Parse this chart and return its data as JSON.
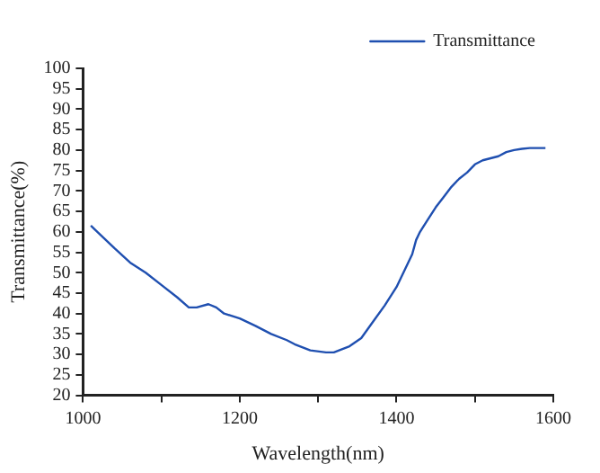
{
  "chart_data": {
    "type": "line",
    "xlabel": "Wavelength(nm)",
    "ylabel": "Transmittance(%)",
    "xlim": [
      1000,
      1600
    ],
    "xticks": [
      1000,
      {
        "value": 1100,
        "label": null
      },
      1200,
      {
        "value": 1300,
        "label": null
      },
      1400,
      {
        "value": 1500,
        "label": null
      },
      1600
    ],
    "ylim": [
      20,
      100
    ],
    "yticks": [
      20,
      25,
      30,
      35,
      40,
      45,
      50,
      55,
      60,
      65,
      70,
      75,
      80,
      85,
      90,
      95,
      100
    ],
    "grid": false,
    "legend": "top right",
    "marker": "none",
    "line_style": "solid",
    "series": [
      {
        "name": "Transmittance",
        "color": "#1f4fb0",
        "x": [
          1010,
          1040,
          1060,
          1080,
          1100,
          1120,
          1135,
          1145,
          1160,
          1170,
          1180,
          1200,
          1220,
          1240,
          1260,
          1270,
          1290,
          1310,
          1320,
          1340,
          1355,
          1370,
          1385,
          1400,
          1410,
          1420,
          1425,
          1430,
          1440,
          1450,
          1460,
          1470,
          1480,
          1490,
          1500,
          1510,
          1520,
          1530,
          1540,
          1550,
          1560,
          1570,
          1590
        ],
        "values": [
          61.5,
          56,
          52.5,
          50,
          47,
          44,
          41.5,
          41.5,
          42.3,
          41.5,
          40,
          38.8,
          37,
          35,
          33.5,
          32.5,
          31,
          30.5,
          30.5,
          32,
          34,
          38,
          42,
          46.5,
          50.5,
          54.5,
          58,
          60,
          63,
          66,
          68.5,
          71,
          73,
          74.5,
          76.5,
          77.5,
          78,
          78.5,
          79.5,
          80,
          80.3,
          80.5,
          80.5
        ]
      }
    ]
  }
}
